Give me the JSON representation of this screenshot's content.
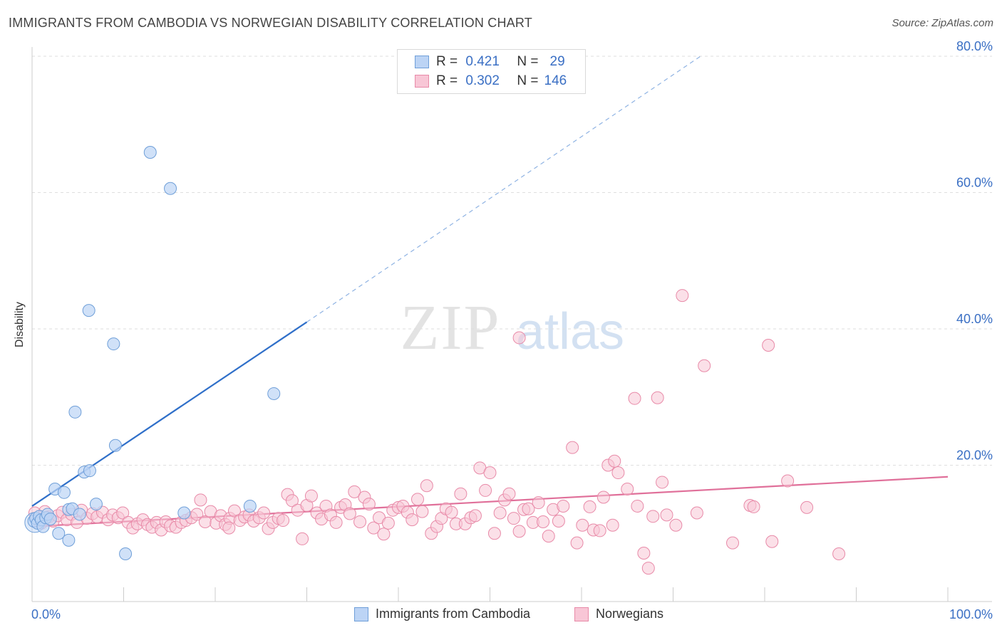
{
  "header": {
    "title": "IMMIGRANTS FROM CAMBODIA VS NORWEGIAN DISABILITY CORRELATION CHART",
    "source": "Source: ZipAtlas.com"
  },
  "legend_top": {
    "rows": [
      {
        "r_label": "R =",
        "r_value": "0.421",
        "n_label": "N =",
        "n_value": "29"
      },
      {
        "r_label": "R =",
        "r_value": "0.302",
        "n_label": "N =",
        "n_value": "146"
      }
    ]
  },
  "watermark": {
    "zip": "ZIP",
    "atlas": "atlas"
  },
  "chart_data": {
    "type": "scatter",
    "ylabel": "Disability",
    "xlabel": "",
    "xlim": [
      0,
      100
    ],
    "ylim": [
      0,
      80
    ],
    "x_tick_labels": {
      "left": "0.0%",
      "right": "100.0%"
    },
    "y_ticks": [
      {
        "value": 20,
        "label": "20.0%"
      },
      {
        "value": 40,
        "label": "40.0%"
      },
      {
        "value": 60,
        "label": "60.0%"
      },
      {
        "value": 80,
        "label": "80.0%"
      }
    ],
    "grid": "horizontal dashed",
    "legend_position": "bottom",
    "colors": {
      "cambodia_fill": "#bcd4f5",
      "cambodia_stroke": "#6f9fd8",
      "cambodia_line": "#2f6fc9",
      "norway_fill": "#f8c6d6",
      "norway_stroke": "#e88aa8",
      "norway_line": "#e0709a",
      "tick_text": "#3a6fc4"
    },
    "series": [
      {
        "name": "Immigrants from Cambodia",
        "r": 0.421,
        "n": 29,
        "trend": {
          "x0": 0,
          "y0": 14.0,
          "x1": 30,
          "y1": 41.0,
          "dash_to_x": 73,
          "dash_to_y": 80
        },
        "points": [
          [
            0.2,
            11.8
          ],
          [
            0.4,
            12.2
          ],
          [
            0.6,
            11.5
          ],
          [
            0.8,
            12.5
          ],
          [
            1.0,
            12.0
          ],
          [
            1.2,
            11.0
          ],
          [
            1.5,
            12.3
          ],
          [
            1.7,
            12.8
          ],
          [
            2.0,
            12.1
          ],
          [
            2.5,
            16.5
          ],
          [
            2.9,
            10.0
          ],
          [
            3.5,
            16.0
          ],
          [
            4.0,
            13.5
          ],
          [
            4.4,
            13.6
          ],
          [
            4.7,
            27.8
          ],
          [
            5.2,
            12.8
          ],
          [
            5.7,
            19.0
          ],
          [
            6.3,
            19.2
          ],
          [
            6.2,
            42.7
          ],
          [
            7.0,
            14.3
          ],
          [
            8.9,
            37.8
          ],
          [
            9.1,
            22.9
          ],
          [
            10.2,
            7.0
          ],
          [
            12.9,
            65.9
          ],
          [
            15.1,
            60.6
          ],
          [
            16.6,
            13.0
          ],
          [
            23.8,
            14.0
          ],
          [
            26.4,
            30.5
          ],
          [
            4.0,
            9.0
          ]
        ]
      },
      {
        "name": "Norwegians",
        "r": 0.302,
        "n": 146,
        "trend": {
          "x0": 0,
          "y0": 11.0,
          "x1": 100,
          "y1": 18.3
        },
        "points": [
          [
            0.3,
            13.0
          ],
          [
            0.6,
            12.0
          ],
          [
            1.0,
            11.5
          ],
          [
            1.4,
            13.2
          ],
          [
            1.8,
            12.4
          ],
          [
            2.3,
            11.8
          ],
          [
            2.8,
            12.6
          ],
          [
            3.3,
            13.1
          ],
          [
            3.8,
            12.0
          ],
          [
            4.3,
            12.8
          ],
          [
            4.9,
            11.6
          ],
          [
            5.4,
            13.4
          ],
          [
            6.0,
            12.2
          ],
          [
            6.6,
            12.9
          ],
          [
            7.1,
            12.4
          ],
          [
            7.7,
            13.1
          ],
          [
            8.3,
            12.0
          ],
          [
            8.8,
            12.7
          ],
          [
            9.4,
            12.3
          ],
          [
            9.9,
            13.0
          ],
          [
            10.5,
            11.6
          ],
          [
            11.0,
            10.8
          ],
          [
            11.5,
            11.4
          ],
          [
            12.1,
            12.0
          ],
          [
            12.6,
            11.3
          ],
          [
            13.1,
            10.9
          ],
          [
            13.6,
            11.6
          ],
          [
            14.1,
            10.5
          ],
          [
            14.6,
            11.7
          ],
          [
            15.1,
            11.1
          ],
          [
            15.7,
            10.9
          ],
          [
            16.3,
            11.6
          ],
          [
            16.8,
            11.9
          ],
          [
            17.4,
            12.3
          ],
          [
            18.0,
            12.8
          ],
          [
            18.4,
            14.9
          ],
          [
            18.9,
            11.7
          ],
          [
            19.5,
            13.2
          ],
          [
            20.1,
            11.5
          ],
          [
            20.6,
            12.6
          ],
          [
            21.1,
            11.3
          ],
          [
            21.6,
            12.2
          ],
          [
            22.1,
            13.3
          ],
          [
            22.7,
            11.9
          ],
          [
            23.2,
            12.4
          ],
          [
            23.7,
            12.7
          ],
          [
            24.2,
            11.8
          ],
          [
            24.8,
            12.3
          ],
          [
            25.3,
            13.0
          ],
          [
            25.8,
            10.7
          ],
          [
            26.3,
            11.6
          ],
          [
            26.9,
            12.2
          ],
          [
            27.4,
            11.9
          ],
          [
            27.9,
            15.7
          ],
          [
            28.4,
            14.8
          ],
          [
            29.0,
            13.4
          ],
          [
            29.5,
            9.2
          ],
          [
            30.0,
            14.1
          ],
          [
            30.5,
            15.5
          ],
          [
            31.1,
            13.0
          ],
          [
            31.6,
            12.1
          ],
          [
            32.1,
            14.0
          ],
          [
            32.6,
            12.7
          ],
          [
            33.2,
            11.6
          ],
          [
            33.7,
            13.8
          ],
          [
            34.2,
            14.2
          ],
          [
            34.7,
            12.9
          ],
          [
            35.2,
            16.1
          ],
          [
            35.8,
            11.7
          ],
          [
            36.3,
            15.3
          ],
          [
            36.8,
            14.3
          ],
          [
            37.3,
            10.8
          ],
          [
            37.9,
            12.3
          ],
          [
            38.4,
            9.9
          ],
          [
            38.9,
            11.5
          ],
          [
            39.4,
            13.4
          ],
          [
            40.0,
            13.8
          ],
          [
            40.5,
            14.0
          ],
          [
            41.0,
            13.1
          ],
          [
            41.5,
            12.0
          ],
          [
            42.1,
            15.0
          ],
          [
            42.6,
            13.2
          ],
          [
            43.1,
            17.0
          ],
          [
            43.6,
            10.0
          ],
          [
            44.2,
            11.0
          ],
          [
            44.7,
            12.2
          ],
          [
            45.2,
            13.6
          ],
          [
            45.8,
            13.1
          ],
          [
            46.3,
            11.4
          ],
          [
            46.8,
            15.8
          ],
          [
            47.3,
            11.4
          ],
          [
            47.9,
            12.3
          ],
          [
            48.4,
            12.6
          ],
          [
            48.9,
            19.6
          ],
          [
            49.5,
            16.3
          ],
          [
            50.0,
            18.9
          ],
          [
            50.5,
            10.0
          ],
          [
            51.1,
            13.0
          ],
          [
            51.6,
            14.9
          ],
          [
            52.1,
            15.8
          ],
          [
            52.6,
            12.2
          ],
          [
            53.2,
            10.3
          ],
          [
            53.7,
            13.5
          ],
          [
            54.2,
            13.6
          ],
          [
            54.7,
            11.6
          ],
          [
            55.3,
            14.5
          ],
          [
            55.8,
            11.7
          ],
          [
            56.4,
            9.6
          ],
          [
            56.9,
            13.5
          ],
          [
            57.5,
            11.8
          ],
          [
            58.0,
            14.0
          ],
          [
            59.0,
            22.6
          ],
          [
            59.5,
            8.6
          ],
          [
            60.1,
            11.2
          ],
          [
            61.3,
            10.5
          ],
          [
            62.0,
            10.4
          ],
          [
            62.4,
            15.3
          ],
          [
            62.9,
            20.0
          ],
          [
            63.4,
            11.2
          ],
          [
            63.6,
            20.6
          ],
          [
            64.0,
            18.9
          ],
          [
            65.0,
            16.5
          ],
          [
            65.8,
            29.8
          ],
          [
            66.8,
            7.1
          ],
          [
            67.3,
            4.9
          ],
          [
            67.8,
            12.5
          ],
          [
            68.3,
            29.9
          ],
          [
            68.8,
            17.5
          ],
          [
            69.3,
            12.7
          ],
          [
            70.3,
            11.2
          ],
          [
            71.0,
            44.9
          ],
          [
            73.4,
            34.6
          ],
          [
            76.5,
            8.6
          ],
          [
            78.4,
            14.1
          ],
          [
            78.8,
            13.9
          ],
          [
            80.4,
            37.6
          ],
          [
            80.8,
            8.8
          ],
          [
            82.5,
            17.7
          ],
          [
            84.6,
            13.8
          ],
          [
            88.1,
            7.0
          ],
          [
            53.2,
            38.7
          ],
          [
            60.9,
            13.9
          ],
          [
            66.1,
            14.0
          ],
          [
            72.6,
            13.0
          ],
          [
            21.5,
            10.8
          ]
        ]
      }
    ]
  },
  "legend_bottom": {
    "items": [
      {
        "label": "Immigrants from Cambodia"
      },
      {
        "label": "Norwegians"
      }
    ]
  }
}
